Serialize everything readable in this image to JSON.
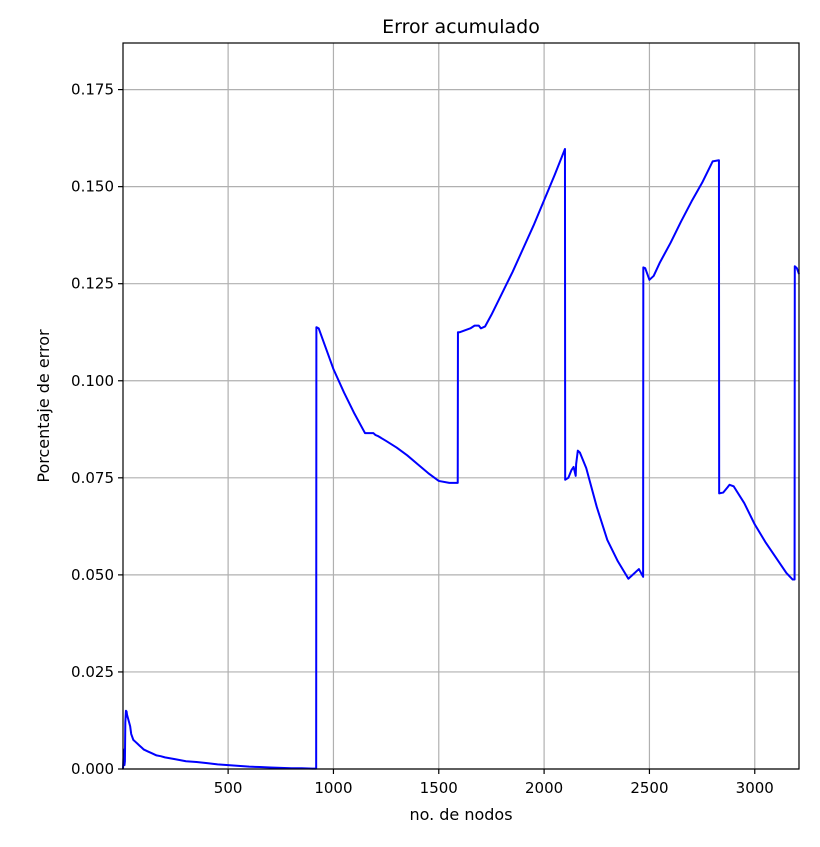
{
  "chart_data": {
    "type": "line",
    "title": "Error acumulado",
    "xlabel": "no. de nodos",
    "ylabel": "Porcentaje de error",
    "xlim": [
      1,
      3210
    ],
    "ylim": [
      0,
      0.187
    ],
    "xticks": [
      500,
      1000,
      1500,
      2000,
      2500,
      3000
    ],
    "xtick_labels": [
      "500",
      "1000",
      "1500",
      "2000",
      "2500",
      "3000"
    ],
    "yticks": [
      0,
      0.025,
      0.05,
      0.075,
      0.1,
      0.125,
      0.15,
      0.175
    ],
    "ytick_labels": [
      "0.000",
      "0.025",
      "0.050",
      "0.075",
      "0.100",
      "0.125",
      "0.150",
      "0.175"
    ],
    "grid": true,
    "series": [
      {
        "color": "#0000ff",
        "x": [
          1,
          5,
          8,
          10,
          12,
          15,
          18,
          20,
          25,
          30,
          35,
          40,
          50,
          60,
          70,
          80,
          90,
          100,
          120,
          140,
          160,
          180,
          200,
          250,
          300,
          350,
          400,
          450,
          500,
          550,
          600,
          650,
          700,
          750,
          800,
          850,
          900,
          918,
          919,
          930,
          940,
          960,
          980,
          1000,
          1050,
          1100,
          1150,
          1190,
          1200,
          1210,
          1250,
          1300,
          1350,
          1400,
          1450,
          1500,
          1550,
          1590,
          1591,
          1600,
          1650,
          1670,
          1690,
          1700,
          1720,
          1750,
          1800,
          1850,
          1900,
          1950,
          2000,
          2050,
          2099,
          2100,
          2115,
          2130,
          2140,
          2150,
          2152,
          2160,
          2170,
          2200,
          2250,
          2300,
          2350,
          2400,
          2450,
          2470,
          2471,
          2480,
          2500,
          2520,
          2550,
          2600,
          2650,
          2700,
          2750,
          2800,
          2830,
          2831,
          2850,
          2870,
          2880,
          2900,
          2950,
          3000,
          3050,
          3100,
          3150,
          3180,
          3189,
          3190,
          3200,
          3210
        ],
        "y": [
          0.0,
          0.005,
          0.001,
          0.002,
          0.012,
          0.015,
          0.0148,
          0.014,
          0.013,
          0.012,
          0.011,
          0.009,
          0.0075,
          0.007,
          0.0065,
          0.006,
          0.0055,
          0.005,
          0.0045,
          0.004,
          0.0035,
          0.0033,
          0.003,
          0.0025,
          0.002,
          0.0018,
          0.0015,
          0.0012,
          0.001,
          0.0008,
          0.0006,
          0.0005,
          0.0004,
          0.0003,
          0.0002,
          0.0002,
          0.0001,
          0.0001,
          0.1138,
          0.1135,
          0.112,
          0.109,
          0.106,
          0.103,
          0.097,
          0.0915,
          0.0865,
          0.0865,
          0.086,
          0.0858,
          0.0845,
          0.0828,
          0.0808,
          0.0785,
          0.0762,
          0.0742,
          0.0737,
          0.0737,
          0.1125,
          0.1125,
          0.1135,
          0.1142,
          0.1142,
          0.1135,
          0.114,
          0.117,
          0.1225,
          0.128,
          0.134,
          0.14,
          0.1465,
          0.153,
          0.1597,
          0.0745,
          0.075,
          0.077,
          0.0778,
          0.0755,
          0.0785,
          0.082,
          0.0815,
          0.0775,
          0.0675,
          0.059,
          0.0535,
          0.049,
          0.0515,
          0.0495,
          0.1292,
          0.129,
          0.126,
          0.127,
          0.1305,
          0.1355,
          0.141,
          0.1462,
          0.151,
          0.1565,
          0.1568,
          0.071,
          0.0712,
          0.0725,
          0.0732,
          0.0728,
          0.0685,
          0.063,
          0.0585,
          0.0545,
          0.0505,
          0.0488,
          0.0488,
          0.1295,
          0.129,
          0.1275
        ]
      }
    ]
  }
}
